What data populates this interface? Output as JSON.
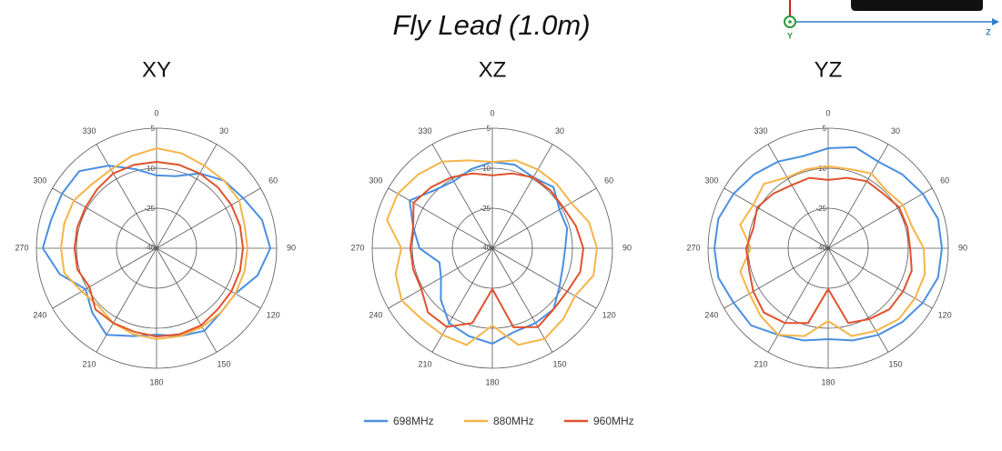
{
  "title": "Fly Lead (1.0m)",
  "axis_icon": {
    "labels": [
      "Y",
      "Z"
    ]
  },
  "chart_data": [
    {
      "type": "polar",
      "title": "XY",
      "theta": [
        0,
        15,
        30,
        45,
        60,
        75,
        90,
        105,
        120,
        135,
        150,
        165,
        180,
        195,
        210,
        225,
        240,
        255,
        270,
        285,
        300,
        315,
        330,
        345
      ],
      "thetaticks": [
        0,
        30,
        60,
        90,
        120,
        150,
        180,
        210,
        240,
        270,
        300,
        330
      ],
      "rlim": [
        -40,
        5
      ],
      "rticks": [
        -40,
        -25,
        -10,
        5
      ],
      "grid": true,
      "series": [
        {
          "name": "698MHz",
          "color": "#4a8fe0",
          "values": [
            -12.7,
            -12.0,
            -7.6,
            -4.2,
            -2.5,
            0.9,
            2.6,
            -0.8,
            -5.9,
            -5.9,
            -4.2,
            -5.9,
            -7.6,
            -5.9,
            -2.5,
            -5.9,
            -9.3,
            -2.5,
            2.6,
            0.9,
            0.9,
            0.9,
            -4.2,
            -9.3
          ]
        },
        {
          "name": "880MHz",
          "color": "#f6b44a",
          "values": [
            -2.5,
            -3.2,
            -4.2,
            -4.2,
            -4.2,
            -5.9,
            -5.9,
            -5.9,
            -5.9,
            -5.9,
            -5.9,
            -5.9,
            -5.9,
            -6.6,
            -7.6,
            -9.3,
            -7.6,
            -4.2,
            -4.2,
            -4.2,
            -4.2,
            -5.9,
            -5.9,
            -4.2
          ]
        },
        {
          "name": "960MHz",
          "color": "#e0522d",
          "values": [
            -7.6,
            -7.6,
            -7.6,
            -7.6,
            -7.6,
            -7.6,
            -7.6,
            -7.6,
            -7.6,
            -7.6,
            -6.6,
            -6.6,
            -6.9,
            -7.6,
            -7.6,
            -7.6,
            -11.0,
            -9.3,
            -9.3,
            -9.3,
            -9.3,
            -8.6,
            -7.6,
            -7.6
          ]
        }
      ]
    },
    {
      "type": "polar",
      "title": "XZ",
      "theta": [
        0,
        15,
        30,
        45,
        60,
        75,
        90,
        105,
        120,
        135,
        150,
        165,
        180,
        195,
        210,
        225,
        240,
        255,
        270,
        285,
        300,
        315,
        330,
        345
      ],
      "thetaticks": [
        0,
        30,
        60,
        90,
        120,
        150,
        180,
        210,
        240,
        270,
        300,
        330
      ],
      "rlim": [
        -40,
        5
      ],
      "rticks": [
        -40,
        -25,
        -10,
        5
      ],
      "grid": true,
      "series": [
        {
          "name": "698MHz",
          "color": "#4a8fe0",
          "values": [
            -7.6,
            -7.6,
            -9.3,
            -7.6,
            -11.0,
            -11.0,
            -12.7,
            -12.7,
            -11.0,
            -7.6,
            -7.6,
            -7.6,
            -4.2,
            -5.9,
            -7.6,
            -12.7,
            -17.8,
            -19.5,
            -12.7,
            -9.3,
            -4.2,
            -9.3,
            -11.0,
            -9.3
          ]
        },
        {
          "name": "880MHz",
          "color": "#f6b44a",
          "values": [
            -7.6,
            -5.9,
            -5.9,
            -5.9,
            -5.9,
            -2.5,
            -0.8,
            -0.8,
            -4.2,
            -2.5,
            -0.8,
            -2.5,
            -11.0,
            -2.5,
            -2.5,
            -2.5,
            -0.8,
            -2.5,
            -5.9,
            0.9,
            0.9,
            -0.8,
            -2.5,
            -5.9
          ]
        },
        {
          "name": "960MHz",
          "color": "#e0522d",
          "values": [
            -12.7,
            -11.0,
            -9.3,
            -9.3,
            -9.3,
            -7.6,
            -5.9,
            -5.9,
            -7.6,
            -7.6,
            -5.9,
            -9.3,
            -24.7,
            -11.0,
            -5.9,
            -5.9,
            -9.3,
            -9.3,
            -9.3,
            -9.3,
            -5.9,
            -7.6,
            -9.3,
            -11.0
          ]
        }
      ]
    },
    {
      "type": "polar",
      "title": "YZ",
      "theta": [
        0,
        15,
        30,
        45,
        60,
        75,
        90,
        105,
        120,
        135,
        150,
        165,
        180,
        195,
        210,
        225,
        240,
        255,
        270,
        285,
        300,
        315,
        330,
        345
      ],
      "thetaticks": [
        0,
        30,
        60,
        90,
        120,
        150,
        180,
        210,
        240,
        270,
        300,
        330
      ],
      "rlim": [
        -40,
        5
      ],
      "rticks": [
        -40,
        -25,
        -10,
        5
      ],
      "grid": true,
      "series": [
        {
          "name": "698MHz",
          "color": "#4a8fe0",
          "values": [
            -2.5,
            -0.8,
            -2.5,
            -0.8,
            0.9,
            2.6,
            2.6,
            2.6,
            0.9,
            -0.8,
            -2.5,
            -4.2,
            -5.9,
            -4.2,
            -2.5,
            0.9,
            0.9,
            2.6,
            2.6,
            2.6,
            0.9,
            -0.8,
            -2.5,
            -4.2
          ]
        },
        {
          "name": "880MHz",
          "color": "#f6b44a",
          "values": [
            -9.3,
            -9.3,
            -7.6,
            -9.3,
            -7.6,
            -7.6,
            -4.2,
            -2.5,
            -2.5,
            -2.5,
            -4.2,
            -5.9,
            -12.7,
            -5.9,
            -2.5,
            -4.2,
            -5.9,
            -5.9,
            -11.0,
            -5.9,
            -7.6,
            -5.9,
            -9.3,
            -9.3
          ]
        },
        {
          "name": "960MHz",
          "color": "#e0522d",
          "values": [
            -14.4,
            -12.7,
            -11.0,
            -11.0,
            -9.3,
            -9.3,
            -9.3,
            -7.6,
            -7.6,
            -7.6,
            -9.3,
            -11.0,
            -24.7,
            -11.0,
            -7.6,
            -5.9,
            -7.6,
            -9.3,
            -9.3,
            -11.0,
            -9.3,
            -11.0,
            -12.7,
            -12.7
          ]
        }
      ]
    }
  ]
}
